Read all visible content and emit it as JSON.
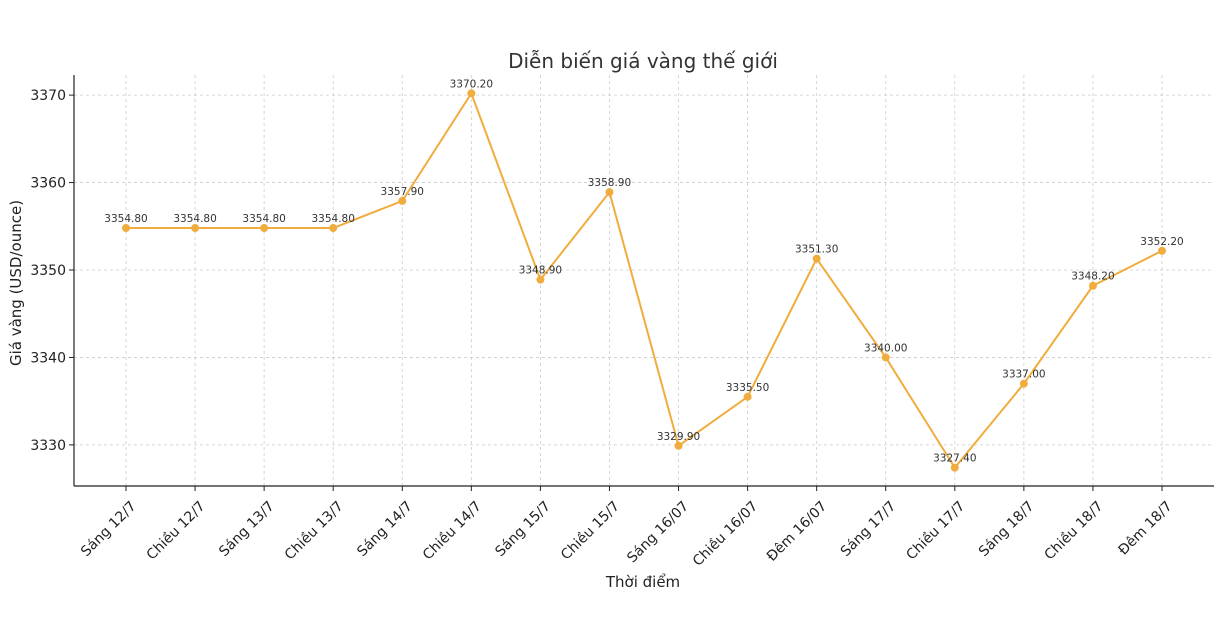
{
  "chart_data": {
    "type": "line",
    "title": "Diễn biến giá vàng thế giới",
    "xlabel": "Thời điểm",
    "ylabel": "Giá vàng (USD/ounce)",
    "categories": [
      "Sáng 12/7",
      "Chiều 12/7",
      "Sáng 13/7",
      "Chiều 13/7",
      "Sáng 14/7",
      "Chiều 14/7",
      "Sáng 15/7",
      "Chiều 15/7",
      "Sáng 16/07",
      "Chiều 16/07",
      "Đêm 16/07",
      "Sáng 17/7",
      "Chiều 17/7",
      "Sáng 18/7",
      "Chiều 18/7",
      "Đêm 18/7"
    ],
    "values": [
      3354.8,
      3354.8,
      3354.8,
      3354.8,
      3357.9,
      3370.2,
      3348.9,
      3358.9,
      3329.9,
      3335.5,
      3351.3,
      3340.0,
      3327.4,
      3337.0,
      3348.2,
      3352.2
    ],
    "data_labels": [
      "3354.80",
      "3354.80",
      "3354.80",
      "3354.80",
      "3357.90",
      "3370.20",
      "3348.90",
      "3358.90",
      "3329.90",
      "3335.50",
      "3351.30",
      "3340.00",
      "3327.40",
      "3337.00",
      "3348.20",
      "3352.20"
    ],
    "yticks": [
      "3330",
      "3340",
      "3350",
      "3360",
      "3370"
    ],
    "ylim": [
      3325.3,
      3372.3
    ],
    "grid": true,
    "legend": "none",
    "line_color": "#f0ad3e",
    "marker_color": "#f0ad3e"
  }
}
